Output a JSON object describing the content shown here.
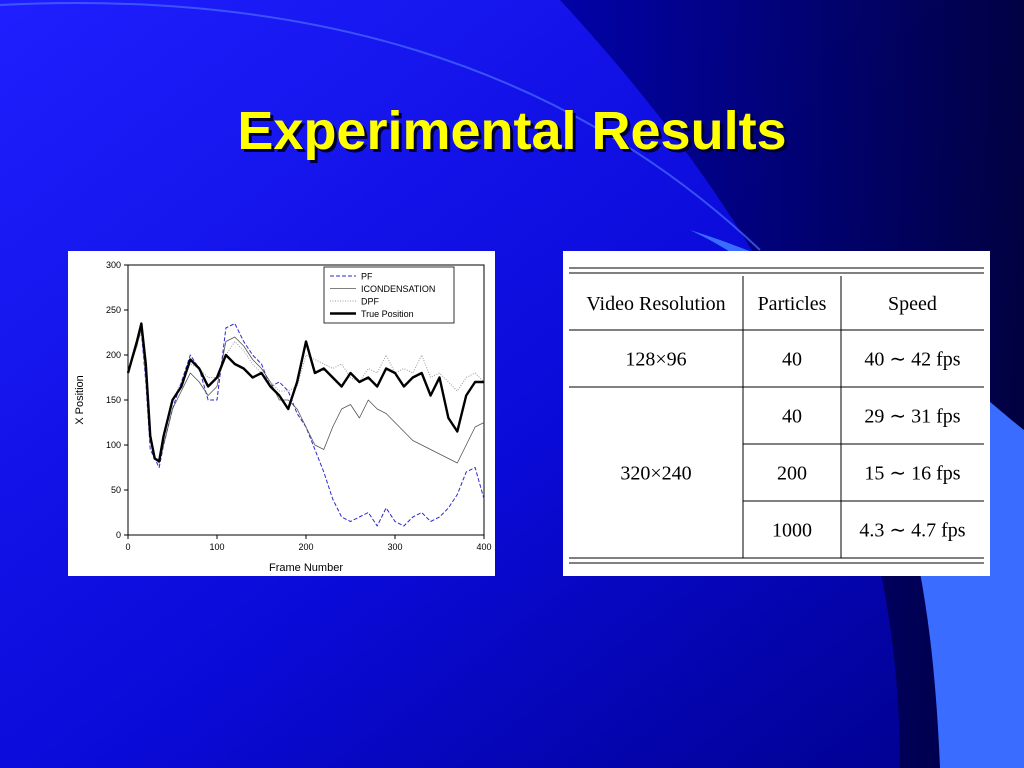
{
  "slide": {
    "title": "Experimental Results",
    "colors": {
      "background_top": "#1a1aff",
      "background_bottom": "#0000aa",
      "title": "#ffff00",
      "accent_swoosh": "#3a6cff"
    }
  },
  "chart_data": {
    "type": "line",
    "title": "",
    "xlabel": "Frame Number",
    "ylabel": "X Position",
    "xlim": [
      0,
      400
    ],
    "ylim": [
      0,
      300
    ],
    "x_ticks": [
      "0",
      "100",
      "200",
      "300",
      "400"
    ],
    "y_ticks": [
      "0",
      "50",
      "100",
      "150",
      "200",
      "250",
      "300"
    ],
    "grid": false,
    "legend_position": "top-right",
    "x": [
      0,
      10,
      15,
      20,
      25,
      30,
      35,
      40,
      50,
      60,
      70,
      80,
      90,
      100,
      110,
      120,
      130,
      140,
      150,
      160,
      170,
      180,
      190,
      200,
      210,
      220,
      230,
      240,
      250,
      260,
      270,
      280,
      290,
      300,
      310,
      320,
      330,
      340,
      350,
      360,
      370,
      380,
      390,
      400
    ],
    "series": [
      {
        "name": "PF",
        "style": "dashed",
        "color": "#2a2ad0",
        "values": [
          180,
          215,
          225,
          170,
          95,
          85,
          75,
          100,
          140,
          170,
          200,
          185,
          150,
          150,
          230,
          235,
          215,
          200,
          190,
          165,
          170,
          160,
          135,
          120,
          95,
          70,
          40,
          20,
          15,
          20,
          25,
          10,
          30,
          15,
          10,
          20,
          25,
          15,
          20,
          30,
          45,
          70,
          75,
          40
        ]
      },
      {
        "name": "ICONDENSATION",
        "style": "solid-thin",
        "color": "#555555",
        "values": [
          180,
          210,
          230,
          175,
          110,
          85,
          80,
          100,
          140,
          160,
          180,
          170,
          155,
          165,
          215,
          220,
          210,
          195,
          185,
          170,
          150,
          150,
          140,
          120,
          100,
          95,
          120,
          140,
          145,
          130,
          150,
          140,
          135,
          125,
          115,
          105,
          100,
          95,
          90,
          85,
          80,
          100,
          120,
          125
        ]
      },
      {
        "name": "DPF",
        "style": "dotted",
        "color": "#999999",
        "values": [
          180,
          210,
          230,
          175,
          110,
          85,
          80,
          110,
          150,
          170,
          190,
          185,
          175,
          175,
          200,
          215,
          205,
          190,
          180,
          170,
          160,
          160,
          165,
          200,
          195,
          190,
          185,
          190,
          175,
          170,
          185,
          180,
          200,
          180,
          185,
          180,
          200,
          175,
          180,
          170,
          160,
          175,
          180,
          170
        ]
      },
      {
        "name": "True Position",
        "style": "solid-thick",
        "color": "#000000",
        "values": [
          180,
          215,
          235,
          190,
          110,
          85,
          82,
          110,
          150,
          165,
          195,
          185,
          165,
          175,
          200,
          190,
          185,
          175,
          180,
          165,
          155,
          140,
          170,
          215,
          180,
          185,
          175,
          165,
          180,
          170,
          175,
          165,
          185,
          180,
          165,
          175,
          180,
          155,
          175,
          130,
          115,
          155,
          170,
          170
        ]
      }
    ]
  },
  "results_table": {
    "headers": [
      "Video Resolution",
      "Particles",
      "Speed"
    ],
    "rows": [
      {
        "resolution": "128×96",
        "particles": "40",
        "speed": "40 ∼ 42 fps"
      },
      {
        "resolution": "320×240",
        "particles": "40",
        "speed": "29 ∼ 31 fps"
      },
      {
        "resolution": "",
        "particles": "200",
        "speed": "15 ∼ 16 fps"
      },
      {
        "resolution": "",
        "particles": "1000",
        "speed": "4.3 ∼ 4.7 fps"
      }
    ]
  }
}
